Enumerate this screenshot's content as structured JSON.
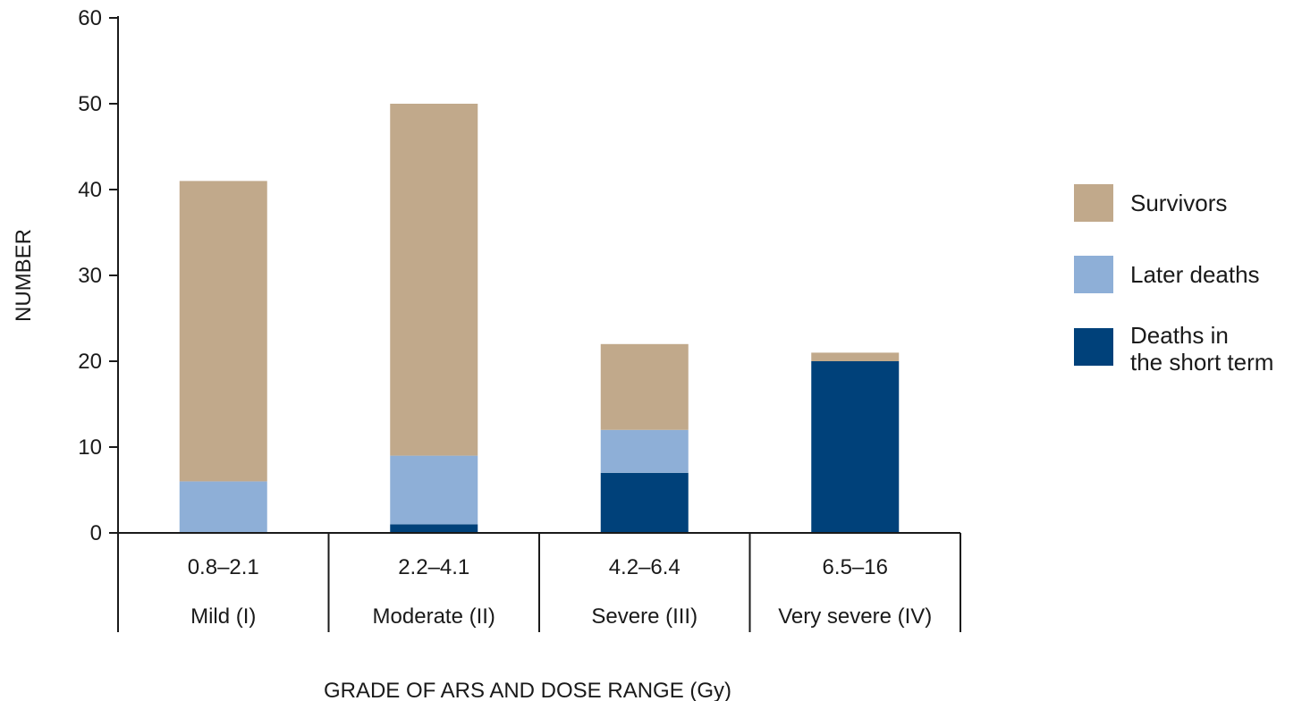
{
  "chart_data": {
    "type": "bar",
    "stacked": true,
    "categories": [
      {
        "dose_range": "0.8–2.1",
        "grade": "Mild (I)"
      },
      {
        "dose_range": "2.2–4.1",
        "grade": "Moderate (II)"
      },
      {
        "dose_range": "4.2–6.4",
        "grade": "Severe (III)"
      },
      {
        "dose_range": "6.5–16",
        "grade": "Very severe (IV)"
      }
    ],
    "series": [
      {
        "name": "Deaths in the short term",
        "legend_lines": [
          "Deaths in",
          "the short term"
        ],
        "color": "#00417a",
        "values": [
          0,
          1,
          7,
          20
        ]
      },
      {
        "name": "Later deaths",
        "legend_lines": [
          "Later deaths"
        ],
        "color": "#8eafd7",
        "values": [
          6,
          8,
          5,
          0
        ]
      },
      {
        "name": "Survivors",
        "legend_lines": [
          "Survivors"
        ],
        "color": "#c1a98b",
        "values": [
          35,
          41,
          10,
          1
        ]
      }
    ],
    "legend_order": [
      2,
      1,
      0
    ],
    "ylabel": "NUMBER",
    "xlabel": "GRADE OF ARS AND DOSE RANGE (Gy)",
    "ylim": [
      0,
      60
    ],
    "yticks": [
      0,
      10,
      20,
      30,
      40,
      50,
      60
    ],
    "grid": false,
    "legend_position": "right"
  }
}
